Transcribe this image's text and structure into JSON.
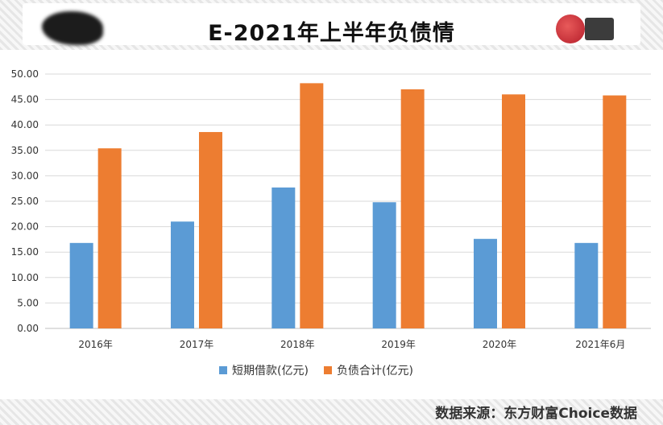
{
  "header": {
    "title": "E-2021年上半年负债情"
  },
  "source": "数据来源：东方财富Choice数据",
  "chart_data": {
    "type": "bar",
    "categories": [
      "2016年",
      "2017年",
      "2018年",
      "2019年",
      "2020年",
      "2021年6月"
    ],
    "series": [
      {
        "name": "短期借款(亿元)",
        "color": "#5b9bd5",
        "values": [
          16.8,
          21.0,
          27.7,
          24.8,
          17.6,
          16.8
        ]
      },
      {
        "name": "负债合计(亿元)",
        "color": "#ed7d31",
        "values": [
          35.4,
          38.6,
          48.2,
          47.0,
          46.0,
          45.8
        ]
      }
    ],
    "yticks": [
      "0.00",
      "5.00",
      "10.00",
      "15.00",
      "20.00",
      "25.00",
      "30.00",
      "35.00",
      "40.00",
      "45.00",
      "50.00"
    ],
    "ylim": [
      0,
      50
    ],
    "grid": true,
    "legend": "bottom"
  }
}
